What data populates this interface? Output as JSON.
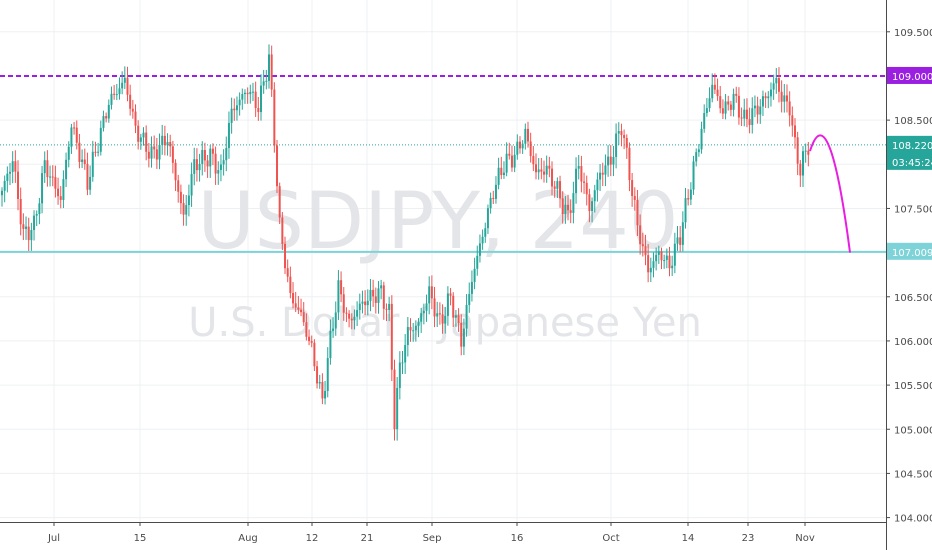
{
  "chart_data": {
    "type": "candlestick",
    "symbol": "USDJPY",
    "interval": "240",
    "description": "U.S. Dollar / Japanese Yen",
    "ylim": [
      103.95,
      109.86
    ],
    "y_ticks": [
      "104.000",
      "104.500",
      "105.000",
      "105.500",
      "106.000",
      "106.500",
      "107.000",
      "107.500",
      "108.000",
      "108.500",
      "109.000",
      "109.500"
    ],
    "x_ticks": [
      "Jul",
      "15",
      "Aug",
      "12",
      "21",
      "Sep",
      "16",
      "Oct",
      "14",
      "23",
      "Nov"
    ],
    "grid": true,
    "horizontal_lines": [
      {
        "value": 109.0,
        "label": "109.000",
        "style": "dashed",
        "color": "#9b1fe0"
      },
      {
        "value": 107.009,
        "label": "107.009",
        "style": "solid",
        "color": "#7dd3d8"
      }
    ],
    "current_price": {
      "value": 108.22,
      "label": "108.220",
      "countdown": "03:45:24",
      "color": "#26a69a"
    },
    "projection_path": [
      {
        "index": 0.0,
        "value": 108.15
      },
      {
        "index": 0.35,
        "value": 108.42
      },
      {
        "index": 0.7,
        "value": 108.05
      },
      {
        "index": 1.0,
        "value": 107.0
      }
    ],
    "colors": {
      "up": "#26a69a",
      "down": "#ef5350",
      "projection": "#e81ee0"
    },
    "keypoints": [
      [
        0,
        107.7
      ],
      [
        4,
        108.05
      ],
      [
        8,
        107.2
      ],
      [
        12,
        107.3
      ],
      [
        16,
        108.0
      ],
      [
        22,
        107.6
      ],
      [
        26,
        108.45
      ],
      [
        32,
        107.8
      ],
      [
        40,
        108.7
      ],
      [
        46,
        108.95
      ],
      [
        50,
        108.4
      ],
      [
        56,
        108.1
      ],
      [
        62,
        108.3
      ],
      [
        68,
        107.4
      ],
      [
        72,
        108.0
      ],
      [
        78,
        108.1
      ],
      [
        82,
        107.9
      ],
      [
        86,
        108.6
      ],
      [
        92,
        108.85
      ],
      [
        96,
        108.65
      ],
      [
        100,
        109.2
      ],
      [
        102,
        108.3
      ],
      [
        104,
        107.3
      ],
      [
        108,
        106.5
      ],
      [
        112,
        106.3
      ],
      [
        116,
        105.9
      ],
      [
        120,
        105.3
      ],
      [
        122,
        105.8
      ],
      [
        126,
        106.6
      ],
      [
        130,
        106.2
      ],
      [
        134,
        106.4
      ],
      [
        138,
        106.5
      ],
      [
        142,
        106.55
      ],
      [
        145,
        106.3
      ],
      [
        147,
        105.1
      ],
      [
        149,
        105.7
      ],
      [
        152,
        106.1
      ],
      [
        156,
        106.2
      ],
      [
        160,
        106.55
      ],
      [
        164,
        106.2
      ],
      [
        168,
        106.5
      ],
      [
        172,
        106.0
      ],
      [
        176,
        106.7
      ],
      [
        180,
        107.2
      ],
      [
        184,
        107.7
      ],
      [
        188,
        108.0
      ],
      [
        192,
        108.1
      ],
      [
        196,
        108.35
      ],
      [
        200,
        107.9
      ],
      [
        204,
        107.95
      ],
      [
        208,
        107.7
      ],
      [
        212,
        107.4
      ],
      [
        216,
        108.0
      ],
      [
        220,
        107.5
      ],
      [
        224,
        107.9
      ],
      [
        228,
        108.05
      ],
      [
        232,
        108.45
      ],
      [
        235,
        107.9
      ],
      [
        238,
        107.3
      ],
      [
        242,
        106.8
      ],
      [
        246,
        107.0
      ],
      [
        250,
        106.85
      ],
      [
        254,
        107.2
      ],
      [
        258,
        107.8
      ],
      [
        262,
        108.4
      ],
      [
        266,
        108.9
      ],
      [
        270,
        108.6
      ],
      [
        274,
        108.75
      ],
      [
        278,
        108.5
      ],
      [
        282,
        108.6
      ],
      [
        286,
        108.75
      ],
      [
        290,
        108.95
      ],
      [
        292,
        108.75
      ],
      [
        295,
        108.65
      ],
      [
        297,
        108.2
      ],
      [
        299,
        107.95
      ],
      [
        302,
        108.22
      ]
    ]
  }
}
